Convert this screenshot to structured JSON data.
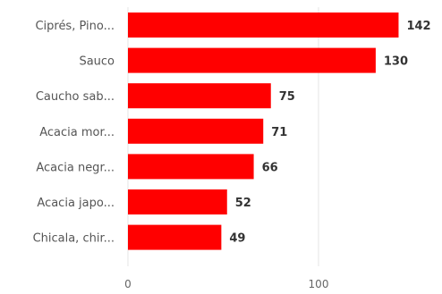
{
  "chart_data": {
    "type": "bar",
    "orientation": "horizontal",
    "categories": [
      "Ciprés, Pino...",
      "Sauco",
      "Caucho sab...",
      "Acacia mor...",
      "Acacia negr...",
      "Acacia japo...",
      "Chicala, chir..."
    ],
    "values": [
      142,
      130,
      75,
      71,
      66,
      52,
      49
    ],
    "xlim": [
      0,
      160
    ],
    "xticks": [
      0,
      100
    ],
    "grid": true,
    "title": "",
    "xlabel": "",
    "ylabel": "",
    "colors": {
      "bar": "#ff0000",
      "grid": "#e6e6e6"
    }
  }
}
